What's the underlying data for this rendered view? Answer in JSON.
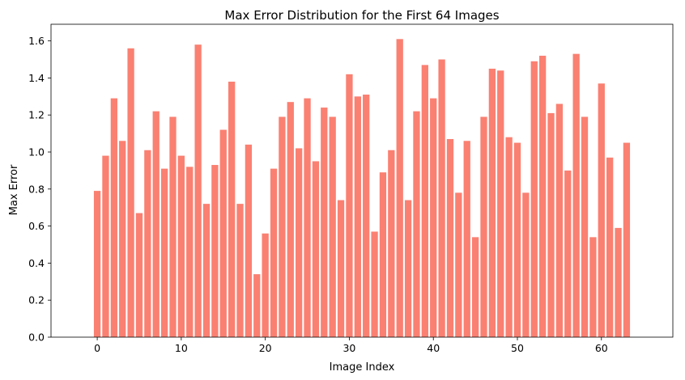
{
  "chart_data": {
    "type": "bar",
    "title": "Max Error Distribution for the First 64 Images",
    "xlabel": "Image Index",
    "ylabel": "Max Error",
    "x": [
      0,
      1,
      2,
      3,
      4,
      5,
      6,
      7,
      8,
      9,
      10,
      11,
      12,
      13,
      14,
      15,
      16,
      17,
      18,
      19,
      20,
      21,
      22,
      23,
      24,
      25,
      26,
      27,
      28,
      29,
      30,
      31,
      32,
      33,
      34,
      35,
      36,
      37,
      38,
      39,
      40,
      41,
      42,
      43,
      44,
      45,
      46,
      47,
      48,
      49,
      50,
      51,
      52,
      53,
      54,
      55,
      56,
      57,
      58,
      59,
      60,
      61,
      62,
      63
    ],
    "values": [
      0.79,
      0.98,
      1.29,
      1.06,
      1.56,
      0.67,
      1.01,
      1.22,
      0.91,
      1.19,
      0.98,
      0.92,
      1.58,
      0.72,
      0.93,
      1.12,
      1.38,
      0.72,
      1.04,
      0.34,
      0.56,
      0.91,
      1.19,
      1.27,
      1.02,
      1.29,
      0.95,
      1.24,
      1.19,
      0.74,
      1.42,
      1.3,
      1.31,
      0.57,
      0.89,
      1.01,
      1.61,
      0.74,
      1.22,
      1.47,
      1.29,
      1.5,
      1.07,
      0.78,
      1.06,
      0.54,
      1.19,
      1.45,
      1.44,
      1.08,
      1.05,
      0.78,
      1.49,
      1.52,
      1.21,
      1.26,
      0.9,
      1.53,
      1.19,
      0.54,
      1.37,
      0.97,
      0.59,
      1.05
    ],
    "xlim": [
      -5.5,
      68.5
    ],
    "ylim": [
      0,
      1.69
    ],
    "x_ticks": [
      0,
      10,
      20,
      30,
      40,
      50,
      60
    ],
    "y_ticks": [
      0.0,
      0.2,
      0.4,
      0.6,
      0.8,
      1.0,
      1.2,
      1.4,
      1.6
    ],
    "y_tick_labels": [
      "0.0",
      "0.2",
      "0.4",
      "0.6",
      "0.8",
      "1.0",
      "1.2",
      "1.4",
      "1.6"
    ],
    "grid": false,
    "colors": {
      "bar": "#fa8072",
      "axis": "#000000"
    }
  }
}
